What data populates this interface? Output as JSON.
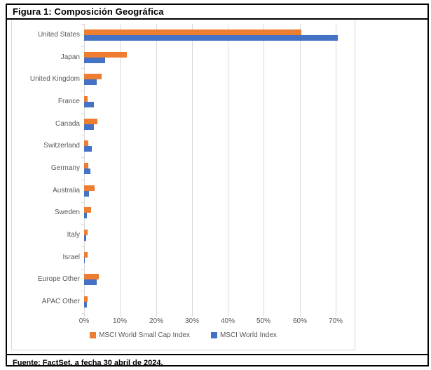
{
  "window": {
    "title": "Figura 1: Composición Geográfica",
    "source_note": "Fuente: FactSet, a fecha 30 abril de 2024."
  },
  "chart_data": {
    "type": "bar",
    "orientation": "horizontal",
    "title": "",
    "xlabel": "",
    "ylabel": "",
    "categories": [
      "United States",
      "Japan",
      "United Kingdom",
      "France",
      "Canada",
      "Switzerland",
      "Germany",
      "Australia",
      "Sweden",
      "Italy",
      "Israel",
      "Europe Other",
      "APAC Other"
    ],
    "series": [
      {
        "name": "MSCI World Small Cap Index",
        "color": "#ED7D31",
        "values": [
          60.5,
          11.9,
          4.9,
          0.9,
          3.7,
          1.1,
          1.1,
          2.9,
          1.9,
          1.0,
          0.9,
          4.1,
          1.0
        ]
      },
      {
        "name": "MSCI World Index",
        "color": "#4472C4",
        "values": [
          70.5,
          5.8,
          3.5,
          2.7,
          2.7,
          2.1,
          1.8,
          1.4,
          0.7,
          0.5,
          0.2,
          3.6,
          0.7
        ]
      }
    ],
    "x_ticks": [
      "0%",
      "10%",
      "20%",
      "30%",
      "40%",
      "50%",
      "60%",
      "70%"
    ],
    "x_tick_values": [
      0,
      10,
      20,
      30,
      40,
      50,
      60,
      70
    ],
    "xlim": [
      0,
      74.7
    ],
    "grid": true,
    "legend_position": "bottom",
    "colors": {
      "gridline": "#d9d9d9",
      "axis_text": "#595959",
      "frame_border": "#000000",
      "chart_border": "#d9d9d9"
    }
  }
}
